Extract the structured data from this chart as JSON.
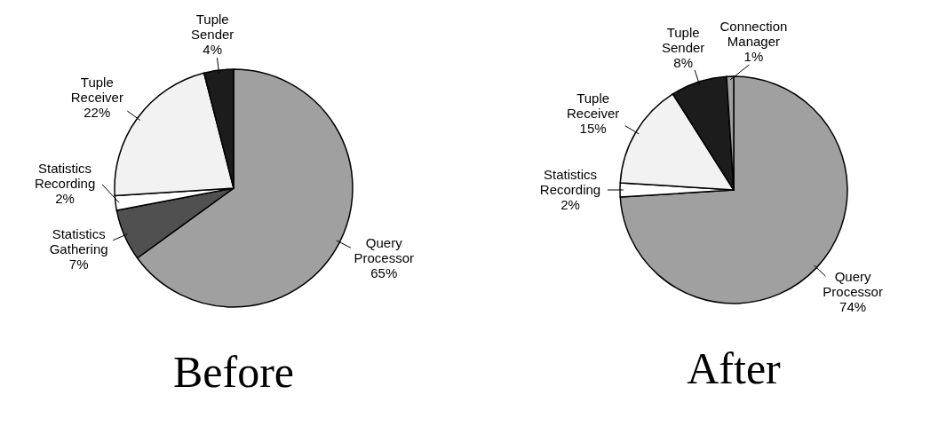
{
  "chart_data": [
    {
      "type": "pie",
      "title": "Before",
      "categories": [
        "Query Processor",
        "Statistics Gathering",
        "Statistics Recording",
        "Tuple Receiver",
        "Tuple Sender"
      ],
      "values": [
        65,
        7,
        2,
        22,
        4
      ],
      "value_labels": [
        "65%",
        "7%",
        "2%",
        "22%",
        "4%"
      ],
      "colors": [
        "#a0a0a0",
        "#505050",
        "#ffffff",
        "#f2f2f2",
        "#1c1c1c"
      ]
    },
    {
      "type": "pie",
      "title": "After",
      "categories": [
        "Query Processor",
        "Statistics Recording",
        "Tuple Receiver",
        "Tuple Sender",
        "Connection Manager"
      ],
      "values": [
        74,
        2,
        15,
        8,
        1
      ],
      "value_labels": [
        "74%",
        "2%",
        "15%",
        "8%",
        "1%"
      ],
      "colors": [
        "#a0a0a0",
        "#ffffff",
        "#f2f2f2",
        "#1c1c1c",
        "#a0a0a0"
      ]
    }
  ]
}
